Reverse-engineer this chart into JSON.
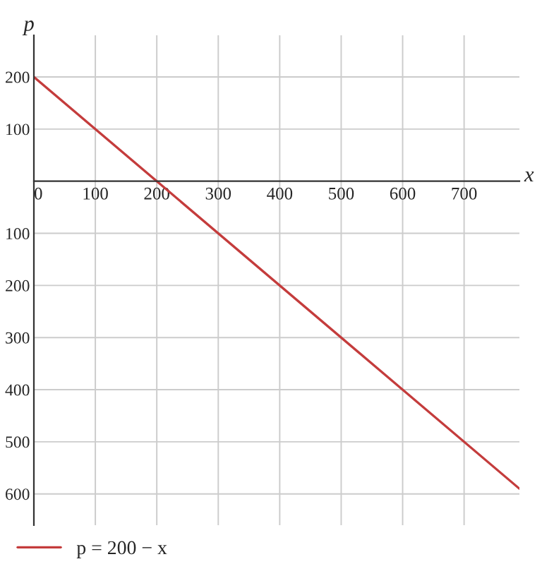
{
  "chart_data": {
    "type": "line",
    "xlabel": "x",
    "ylabel": "p",
    "x": [
      0,
      790
    ],
    "series": [
      {
        "name": "p = 200 − x",
        "color": "#c43c3c",
        "values": [
          200,
          -590
        ]
      }
    ],
    "xlim": [
      0,
      790
    ],
    "ylim": [
      -660,
      280
    ],
    "xticks": [
      0,
      100,
      200,
      300,
      400,
      500,
      600,
      700
    ],
    "yticks": [
      200,
      100,
      {
        "value": -100,
        "label": "100"
      },
      {
        "value": -200,
        "label": "200"
      },
      {
        "value": -300,
        "label": "300"
      },
      {
        "value": -400,
        "label": "400"
      },
      {
        "value": -500,
        "label": "500"
      },
      {
        "value": -600,
        "label": "600"
      }
    ],
    "grid": true,
    "legend": "bottom",
    "marker": "none",
    "line_style": "solid"
  }
}
